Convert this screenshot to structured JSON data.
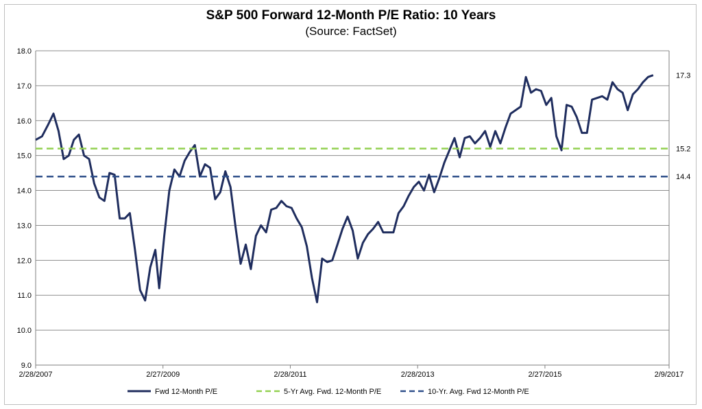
{
  "chart_data": {
    "type": "line",
    "title": "S&P 500 Forward 12-Month P/E Ratio: 10 Years",
    "subtitle": "(Source: FactSet)",
    "xlabel": "",
    "ylabel": "",
    "ylim": [
      9.0,
      18.0
    ],
    "yticks": [
      "9.0",
      "10.0",
      "11.0",
      "12.0",
      "13.0",
      "14.0",
      "15.0",
      "16.0",
      "17.0",
      "18.0"
    ],
    "xticks": [
      {
        "label": "2/28/2007",
        "x": 2007.16
      },
      {
        "label": "2/27/2009",
        "x": 2009.16
      },
      {
        "label": "2/28/2011",
        "x": 2011.16
      },
      {
        "label": "2/28/2013",
        "x": 2013.16
      },
      {
        "label": "2/27/2015",
        "x": 2015.16
      },
      {
        "label": "2/9/2017",
        "x": 2017.11
      }
    ],
    "xlim": [
      2007.16,
      2017.11
    ],
    "grid": true,
    "legend_position": "bottom",
    "series": [
      {
        "name": "Fwd 12-Month P/E",
        "color": "#1f2d5e",
        "style": "solid",
        "end_label": "17.3",
        "points": [
          [
            2007.16,
            15.45
          ],
          [
            2007.26,
            15.55
          ],
          [
            2007.36,
            15.9
          ],
          [
            2007.44,
            16.2
          ],
          [
            2007.52,
            15.7
          ],
          [
            2007.6,
            14.9
          ],
          [
            2007.68,
            15.0
          ],
          [
            2007.76,
            15.45
          ],
          [
            2007.84,
            15.6
          ],
          [
            2007.92,
            15.0
          ],
          [
            2008.0,
            14.9
          ],
          [
            2008.08,
            14.2
          ],
          [
            2008.16,
            13.8
          ],
          [
            2008.24,
            13.7
          ],
          [
            2008.32,
            14.5
          ],
          [
            2008.4,
            14.45
          ],
          [
            2008.48,
            13.2
          ],
          [
            2008.56,
            13.2
          ],
          [
            2008.64,
            13.35
          ],
          [
            2008.72,
            12.3
          ],
          [
            2008.8,
            11.15
          ],
          [
            2008.88,
            10.85
          ],
          [
            2008.96,
            11.8
          ],
          [
            2009.04,
            12.3
          ],
          [
            2009.1,
            11.2
          ],
          [
            2009.18,
            12.7
          ],
          [
            2009.26,
            14.0
          ],
          [
            2009.34,
            14.6
          ],
          [
            2009.42,
            14.4
          ],
          [
            2009.5,
            14.85
          ],
          [
            2009.58,
            15.1
          ],
          [
            2009.66,
            15.3
          ],
          [
            2009.74,
            14.4
          ],
          [
            2009.82,
            14.75
          ],
          [
            2009.9,
            14.65
          ],
          [
            2009.98,
            13.75
          ],
          [
            2010.06,
            13.95
          ],
          [
            2010.14,
            14.55
          ],
          [
            2010.22,
            14.1
          ],
          [
            2010.3,
            12.95
          ],
          [
            2010.38,
            11.9
          ],
          [
            2010.46,
            12.45
          ],
          [
            2010.54,
            11.75
          ],
          [
            2010.62,
            12.7
          ],
          [
            2010.7,
            13.0
          ],
          [
            2010.78,
            12.8
          ],
          [
            2010.86,
            13.45
          ],
          [
            2010.94,
            13.5
          ],
          [
            2011.02,
            13.7
          ],
          [
            2011.1,
            13.55
          ],
          [
            2011.18,
            13.5
          ],
          [
            2011.26,
            13.2
          ],
          [
            2011.34,
            12.95
          ],
          [
            2011.42,
            12.4
          ],
          [
            2011.5,
            11.5
          ],
          [
            2011.58,
            10.8
          ],
          [
            2011.66,
            12.05
          ],
          [
            2011.74,
            11.95
          ],
          [
            2011.82,
            12.0
          ],
          [
            2011.9,
            12.45
          ],
          [
            2011.98,
            12.9
          ],
          [
            2012.06,
            13.25
          ],
          [
            2012.14,
            12.85
          ],
          [
            2012.22,
            12.05
          ],
          [
            2012.3,
            12.5
          ],
          [
            2012.38,
            12.75
          ],
          [
            2012.46,
            12.9
          ],
          [
            2012.54,
            13.1
          ],
          [
            2012.62,
            12.8
          ],
          [
            2012.7,
            12.8
          ],
          [
            2012.78,
            12.8
          ],
          [
            2012.86,
            13.35
          ],
          [
            2012.94,
            13.55
          ],
          [
            2013.02,
            13.85
          ],
          [
            2013.1,
            14.1
          ],
          [
            2013.18,
            14.25
          ],
          [
            2013.26,
            14.0
          ],
          [
            2013.34,
            14.45
          ],
          [
            2013.42,
            13.95
          ],
          [
            2013.5,
            14.35
          ],
          [
            2013.58,
            14.8
          ],
          [
            2013.66,
            15.15
          ],
          [
            2013.74,
            15.5
          ],
          [
            2013.82,
            14.95
          ],
          [
            2013.9,
            15.5
          ],
          [
            2013.98,
            15.55
          ],
          [
            2014.06,
            15.35
          ],
          [
            2014.14,
            15.5
          ],
          [
            2014.22,
            15.7
          ],
          [
            2014.3,
            15.25
          ],
          [
            2014.38,
            15.7
          ],
          [
            2014.46,
            15.35
          ],
          [
            2014.54,
            15.8
          ],
          [
            2014.62,
            16.2
          ],
          [
            2014.7,
            16.3
          ],
          [
            2014.78,
            16.4
          ],
          [
            2014.86,
            17.25
          ],
          [
            2014.94,
            16.8
          ],
          [
            2015.02,
            16.9
          ],
          [
            2015.1,
            16.85
          ],
          [
            2015.18,
            16.45
          ],
          [
            2015.26,
            16.65
          ],
          [
            2015.34,
            15.55
          ],
          [
            2015.42,
            15.15
          ],
          [
            2015.5,
            16.45
          ],
          [
            2015.58,
            16.4
          ],
          [
            2015.66,
            16.1
          ],
          [
            2015.74,
            15.65
          ],
          [
            2015.82,
            15.65
          ],
          [
            2015.9,
            16.6
          ],
          [
            2015.98,
            16.65
          ],
          [
            2016.06,
            16.7
          ],
          [
            2016.14,
            16.6
          ],
          [
            2016.22,
            17.1
          ],
          [
            2016.3,
            16.9
          ],
          [
            2016.38,
            16.8
          ],
          [
            2016.46,
            16.3
          ],
          [
            2016.54,
            16.75
          ],
          [
            2016.62,
            16.9
          ],
          [
            2016.7,
            17.1
          ],
          [
            2016.78,
            17.25
          ],
          [
            2016.86,
            17.3
          ]
        ]
      },
      {
        "name": "5-Yr Avg. Fwd. 12-Month P/E",
        "color": "#92d050",
        "style": "dashed",
        "value": 15.2,
        "end_label": "15.2"
      },
      {
        "name": "10-Yr. Avg. Fwd 12-Month P/E",
        "color": "#2e4f8a",
        "style": "dashed",
        "value": 14.4,
        "end_label": "14.4"
      }
    ]
  }
}
